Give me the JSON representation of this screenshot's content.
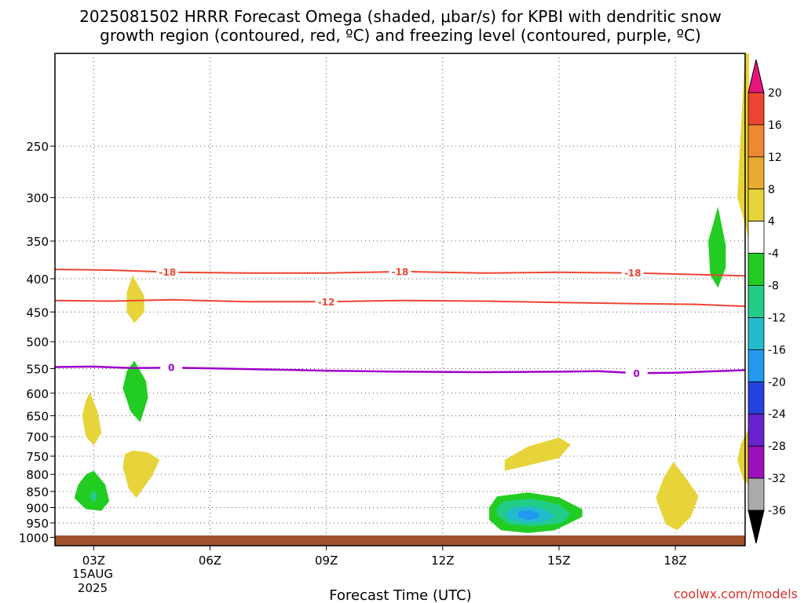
{
  "title_line1": "2025081502 HRRR Forecast Omega (shaded, μbar/s) for KPBI with dendritic snow",
  "title_line2": "growth region (contoured, red, ºC) and freezing level (contoured, purple, ºC)",
  "credit": "coolwx.com/models",
  "chart_data": {
    "type": "time-height cross section",
    "title": "2025081502 HRRR Forecast Omega (shaded, μbar/s) for KPBI with dendritic snow growth region (contoured, red, ºC) and freezing level (contoured, purple, ºC)",
    "xlabel": "Forecast Time (UTC)",
    "ylabel": "",
    "x_ticks": [
      "03Z",
      "06Z",
      "09Z",
      "12Z",
      "15Z",
      "18Z"
    ],
    "x_tick_hours": [
      3,
      6,
      9,
      12,
      15,
      18
    ],
    "x_date_label": [
      "15AUG",
      "2025"
    ],
    "xlim": [
      2.0,
      19.8
    ],
    "y_ticks": [
      250,
      300,
      350,
      400,
      450,
      500,
      550,
      600,
      650,
      700,
      750,
      800,
      850,
      900,
      950,
      1000
    ],
    "ylim_hPa": [
      1030,
      180
    ],
    "y_scale": "log",
    "grid": true,
    "colorbar": {
      "labels": [
        20,
        16,
        12,
        8,
        4,
        -4,
        -8,
        -12,
        -16,
        -20,
        -24,
        -28,
        -32,
        -36
      ],
      "colors": [
        "#e8157c",
        "#ee4433",
        "#ee8833",
        "#e9aa33",
        "#e6d43a",
        "#ffffff",
        "#22cc22",
        "#22cc88",
        "#22bbcc",
        "#2299ee",
        "#2244dd",
        "#6622cc",
        "#9911bb",
        "#aaaaaa",
        "#000000"
      ]
    },
    "contours": [
      {
        "label": "-18",
        "color": "#ee4433",
        "points": [
          [
            2.0,
            387
          ],
          [
            3.5,
            388
          ],
          [
            5.0,
            391
          ],
          [
            7.0,
            392
          ],
          [
            9.0,
            392
          ],
          [
            11.0,
            390
          ],
          [
            13.0,
            392
          ],
          [
            15.0,
            391
          ],
          [
            17.0,
            392
          ],
          [
            18.5,
            394
          ],
          [
            19.8,
            396
          ]
        ],
        "label_hours": [
          4.9,
          10.9,
          16.9
        ]
      },
      {
        "label": "-12",
        "color": "#ee4433",
        "points": [
          [
            2.0,
            432
          ],
          [
            3.5,
            433
          ],
          [
            5.0,
            431
          ],
          [
            7.0,
            434
          ],
          [
            9.0,
            434
          ],
          [
            11.0,
            432
          ],
          [
            13.0,
            433
          ],
          [
            15.0,
            435
          ],
          [
            17.0,
            437
          ],
          [
            18.5,
            438
          ],
          [
            19.8,
            441
          ]
        ],
        "label_hours": [
          9.0
        ]
      },
      {
        "label": "0",
        "color": "#a000cc",
        "points": [
          [
            2.0,
            547
          ],
          [
            3.0,
            546
          ],
          [
            4.0,
            549
          ],
          [
            5.0,
            548
          ],
          [
            7.0,
            551
          ],
          [
            9.0,
            554
          ],
          [
            11.0,
            556
          ],
          [
            13.0,
            557
          ],
          [
            15.0,
            556
          ],
          [
            16.0,
            555
          ],
          [
            17.0,
            559
          ],
          [
            18.0,
            558
          ],
          [
            19.8,
            553
          ]
        ],
        "label_hours": [
          5.0,
          17.0
        ]
      }
    ],
    "omega_areas": [
      {
        "range": "4 to 8",
        "center_hour": 2.9,
        "pressure_span": [
          595,
          725
        ]
      },
      {
        "range": "-4 to -8",
        "center_hour": 3.0,
        "pressure_span": [
          790,
          910
        ]
      },
      {
        "range": "4 to 8",
        "center_hour": 4.1,
        "pressure_span": [
          395,
          465
        ]
      },
      {
        "range": "-4 to -8",
        "center_hour": 4.1,
        "pressure_span": [
          535,
          665
        ]
      },
      {
        "range": "4 to 8",
        "center_hour": 4.1,
        "pressure_span": [
          730,
          870
        ]
      },
      {
        "range": "4 to 8",
        "center_hour": 14.5,
        "pressure_span": [
          700,
          790
        ]
      },
      {
        "range": "-4 to -16",
        "center_hour": 14.3,
        "pressure_span": [
          855,
          985
        ]
      },
      {
        "range": "4 to 8",
        "center_hour": 18.0,
        "pressure_span": [
          765,
          975
        ]
      },
      {
        "range": "-4 to -8",
        "center_hour": 19.1,
        "pressure_span": [
          310,
          415
        ]
      },
      {
        "range": "4 to 8",
        "center_hour": 19.8,
        "pressure_span": [
          180,
          350
        ]
      },
      {
        "range": "4 to 8",
        "center_hour": 19.8,
        "pressure_span": [
          680,
          830
        ]
      }
    ],
    "terrain": "ground below ~1010 hPa"
  }
}
